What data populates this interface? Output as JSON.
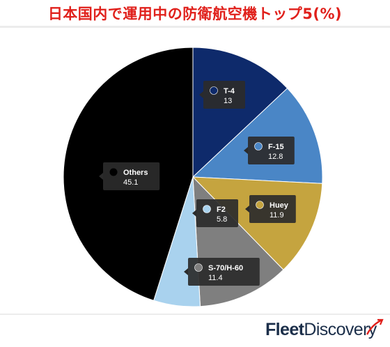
{
  "header": {
    "title": "日本国内で運用中の防衛航空機トップ5(%)"
  },
  "chart_data": {
    "type": "pie",
    "title": "日本国内で運用中の防衛航空機トップ5(%)",
    "slices": [
      {
        "label": "T-4",
        "value": 13,
        "display": "13",
        "color": "#0e2a6b",
        "dot": "#0e2a6b"
      },
      {
        "label": "F-15",
        "value": 12.8,
        "display": "12.8",
        "color": "#4a86c6",
        "dot": "#4a86c6"
      },
      {
        "label": "Huey",
        "value": 11.9,
        "display": "11.9",
        "color": "#c5a43f",
        "dot": "#c5a43f"
      },
      {
        "label": "S-70/H-60",
        "value": 11.4,
        "display": "11.4",
        "color": "#7f7f7f",
        "dot": "#7f7f7f"
      },
      {
        "label": "F2",
        "value": 5.8,
        "display": "5.8",
        "color": "#a9d2ee",
        "dot": "#a9d2ee"
      },
      {
        "label": "Others",
        "value": 45.1,
        "display": "45.1",
        "color": "#000000",
        "dot": "#000000"
      }
    ],
    "start_angle": "top",
    "direction": "clockwise",
    "legend": "none"
  },
  "brand": {
    "fleet": "Fleet",
    "discovery": "Discovery",
    "accent": "#e0201b"
  }
}
